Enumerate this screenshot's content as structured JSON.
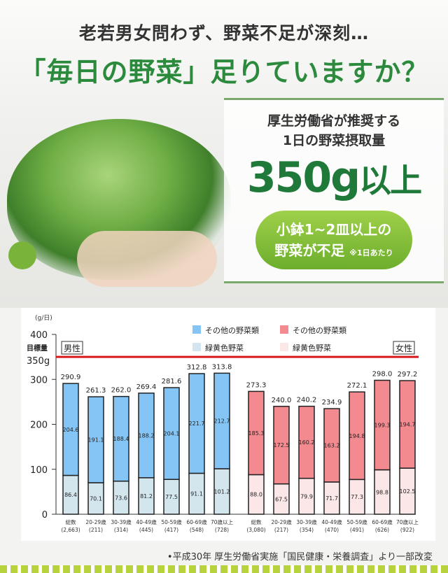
{
  "header": {
    "line1": "老若男女問わず、野菜不足が深刻…",
    "line2": "「毎日の野菜」足りていますか？"
  },
  "box": {
    "line1": "厚生労働省が推奨する",
    "line2": "1日の野菜摂取量",
    "amount": "350g",
    "amount_suffix": "以上",
    "pill_line1": "小鉢1~2皿以上の",
    "pill_line2": "野菜が不足",
    "pill_note": "※1日あたり"
  },
  "chart_data": {
    "type": "bar",
    "stacked": true,
    "unit_label": "(g/日)",
    "ylim": [
      0,
      400
    ],
    "yticks": [
      0,
      100,
      200,
      300,
      400
    ],
    "target": {
      "label1": "目標量",
      "label2": "350g",
      "value": 350,
      "color": "#d7191c"
    },
    "legend": {
      "male_other": "その他の野菜類",
      "male_green": "緑黄色野菜",
      "female_other": "その他の野菜類",
      "female_green": "緑黄色野菜"
    },
    "colors": {
      "male_other": "#84c5f5",
      "male_green": "#d3e6ee",
      "female_other": "#f28a90",
      "female_green": "#fbe6e8"
    },
    "groups": [
      {
        "name": "男性",
        "categories": [
          "総数",
          "20-29歳",
          "30-39歳",
          "40-49歳",
          "50-59歳",
          "60-69歳",
          "70歳以上"
        ],
        "n": [
          "(2,663)",
          "(211)",
          "(314)",
          "(445)",
          "(417)",
          "(548)",
          "(728)"
        ],
        "totals": [
          290.9,
          261.3,
          262.0,
          269.4,
          281.6,
          312.8,
          313.8
        ],
        "other": [
          204.6,
          191.1,
          188.4,
          188.2,
          204.1,
          221.7,
          212.7
        ],
        "green_yellow": [
          86.4,
          70.1,
          73.6,
          81.2,
          77.5,
          91.1,
          101.2
        ]
      },
      {
        "name": "女性",
        "categories": [
          "総数",
          "20-29歳",
          "30-39歳",
          "40-49歳",
          "50-59歳",
          "60-69歳",
          "70歳以上"
        ],
        "n": [
          "(3,080)",
          "(217)",
          "(354)",
          "(470)",
          "(491)",
          "(626)",
          "(922)"
        ],
        "totals": [
          273.3,
          240.0,
          240.2,
          234.9,
          272.1,
          298.0,
          297.2
        ],
        "other": [
          185.3,
          172.5,
          160.2,
          163.2,
          194.8,
          199.3,
          194.7
        ],
        "green_yellow": [
          88.0,
          67.5,
          79.9,
          71.7,
          77.3,
          98.8,
          102.5
        ]
      }
    ]
  },
  "source": "•平成30年 厚生労働省実施「国民健康・栄養調査」より一部改変"
}
